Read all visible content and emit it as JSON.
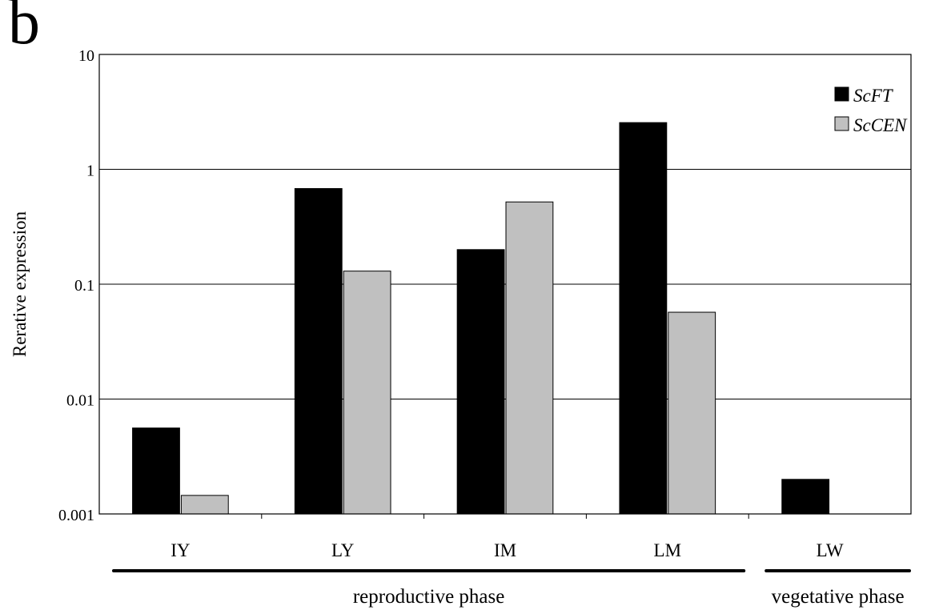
{
  "panel_label": "b",
  "chart_data": {
    "type": "bar",
    "scale": "log",
    "ylim": [
      0.001,
      10
    ],
    "ylabel": "Rerative expression",
    "xlabel": "",
    "title": "",
    "yticks": [
      {
        "value": 10,
        "label": "10"
      },
      {
        "value": 1,
        "label": "1"
      },
      {
        "value": 0.1,
        "label": "0.1"
      },
      {
        "value": 0.01,
        "label": "0.01"
      },
      {
        "value": 0.001,
        "label": "0.001"
      }
    ],
    "grid": true,
    "legend_position": "top-right",
    "categories": [
      "IY",
      "LY",
      "IM",
      "LM",
      "LW"
    ],
    "series": [
      {
        "name": "ScFT",
        "color": "#000000",
        "values": [
          0.0056,
          0.68,
          0.2,
          2.55,
          0.002
        ]
      },
      {
        "name": "ScCEN",
        "color": "#c0c0c0",
        "values": [
          0.00145,
          0.13,
          0.52,
          0.057,
          null
        ]
      }
    ],
    "phases": [
      {
        "label": "reproductive phase",
        "categories": [
          "IY",
          "LY",
          "IM",
          "LM"
        ]
      },
      {
        "label": "vegetative phase",
        "categories": [
          "LW"
        ]
      }
    ]
  }
}
